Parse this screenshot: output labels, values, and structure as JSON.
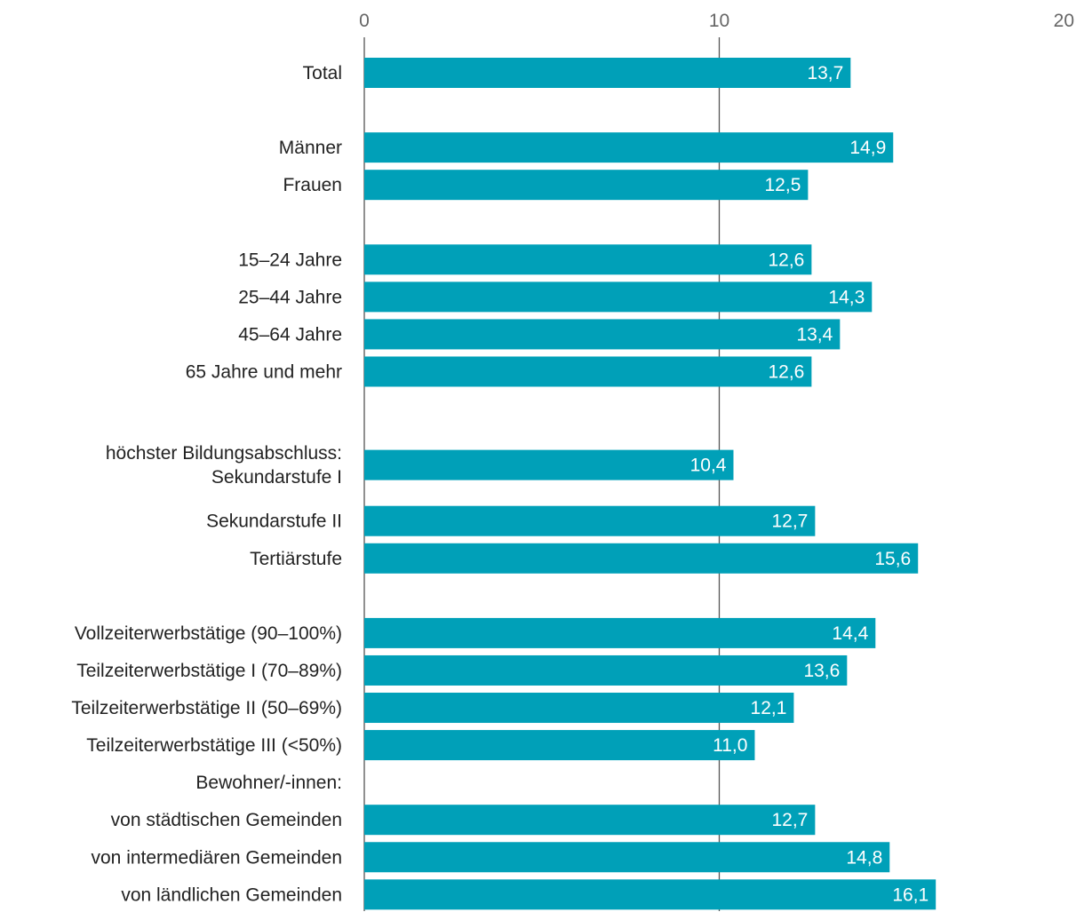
{
  "chart_data": {
    "type": "bar",
    "orientation": "horizontal",
    "title": "",
    "xlabel": "",
    "ylabel": "",
    "xlim": [
      0,
      20
    ],
    "ticks": [
      {
        "value": 0,
        "label": "0"
      },
      {
        "value": 10,
        "label": "10"
      },
      {
        "value": 20,
        "label": "20"
      }
    ],
    "bar_color": "#00A0B8",
    "gridline_color": "#555555",
    "rows": [
      {
        "label": [
          "Total"
        ],
        "value": 13.7,
        "value_label": "13,7",
        "row": 0
      },
      {
        "label": [
          "Männer"
        ],
        "value": 14.9,
        "value_label": "14,9",
        "row": 2
      },
      {
        "label": [
          "Frauen"
        ],
        "value": 12.5,
        "value_label": "12,5",
        "row": 3
      },
      {
        "label": [
          "15–24 Jahre"
        ],
        "value": 12.6,
        "value_label": "12,6",
        "row": 5
      },
      {
        "label": [
          "25–44 Jahre"
        ],
        "value": 14.3,
        "value_label": "14,3",
        "row": 6
      },
      {
        "label": [
          "45–64 Jahre"
        ],
        "value": 13.4,
        "value_label": "13,4",
        "row": 7
      },
      {
        "label": [
          "65 Jahre und mehr"
        ],
        "value": 12.6,
        "value_label": "12,6",
        "row": 8
      },
      {
        "label": [
          "höchster Bildungsabschluss:",
          "Sekundarstufe I"
        ],
        "value": 10.4,
        "value_label": "10,4",
        "row": 10.5
      },
      {
        "label": [
          "Sekundarstufe II"
        ],
        "value": 12.7,
        "value_label": "12,7",
        "row": 12
      },
      {
        "label": [
          "Tertiärstufe"
        ],
        "value": 15.6,
        "value_label": "15,6",
        "row": 13
      },
      {
        "label": [
          "Vollzeiterwerbstätige (90–100%)"
        ],
        "value": 14.4,
        "value_label": "14,4",
        "row": 15
      },
      {
        "label": [
          "Teilzeiterwerbstätige I (70–89%)"
        ],
        "value": 13.6,
        "value_label": "13,6",
        "row": 16
      },
      {
        "label": [
          "Teilzeiterwerbstätige II (50–69%)"
        ],
        "value": 12.1,
        "value_label": "12,1",
        "row": 17
      },
      {
        "label": [
          "Teilzeiterwerbstätige III (<50%)"
        ],
        "value": 11.0,
        "value_label": "11,0",
        "row": 18
      },
      {
        "label": [
          "Bewohner/-innen:"
        ],
        "value": null,
        "value_label": "",
        "row": 19
      },
      {
        "label": [
          "von städtischen Gemeinden"
        ],
        "value": 12.7,
        "value_label": "12,7",
        "row": 20
      },
      {
        "label": [
          "von intermediären Gemeinden"
        ],
        "value": 14.8,
        "value_label": "14,8",
        "row": 21
      },
      {
        "label": [
          "von ländlichen Gemeinden"
        ],
        "value": 16.1,
        "value_label": "16,1",
        "row": 22
      }
    ]
  }
}
